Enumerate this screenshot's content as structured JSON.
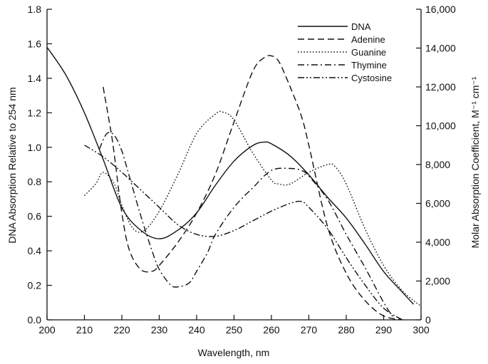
{
  "chart_data": {
    "type": "line",
    "xlabel": "Wavelength, nm",
    "ylabel_left": "DNA Absorption Relative to 254 nm",
    "ylabel_right": "Molar Absorption Coefficient, M⁻¹ cm⁻¹",
    "xlim": [
      200,
      300
    ],
    "ylim_left": [
      0,
      1.8
    ],
    "ylim_right": [
      0,
      16000
    ],
    "x_ticks": [
      "200",
      "210",
      "220",
      "230",
      "240",
      "250",
      "260",
      "270",
      "280",
      "290",
      "300"
    ],
    "y_left_ticks": [
      "0.0",
      "0.2",
      "0.4",
      "0.6",
      "0.8",
      "1.0",
      "1.2",
      "1.4",
      "1.6",
      "1.8"
    ],
    "y_right_ticks": [
      "0",
      "2,000",
      "4,000",
      "6,000",
      "8,000",
      "10,000",
      "12,000",
      "14,000",
      "16,000"
    ],
    "grid": false,
    "legend_position": "top-right",
    "series": [
      {
        "name": "DNA",
        "axis": "left",
        "style": "solid",
        "x": [
          200,
          205,
          210,
          215,
          220,
          225,
          230,
          235,
          240,
          245,
          250,
          255,
          258,
          260,
          265,
          270,
          275,
          280,
          285,
          290,
          295,
          298
        ],
        "y": [
          1.58,
          1.42,
          1.2,
          0.93,
          0.65,
          0.52,
          0.47,
          0.52,
          0.62,
          0.78,
          0.92,
          1.01,
          1.03,
          1.02,
          0.95,
          0.84,
          0.71,
          0.59,
          0.44,
          0.28,
          0.16,
          0.09
        ]
      },
      {
        "name": "Adenine",
        "axis": "right",
        "style": "dashed",
        "x": [
          215,
          217,
          218,
          220,
          222,
          225,
          228,
          230,
          235,
          240,
          245,
          250,
          255,
          258,
          260,
          262,
          265,
          268,
          270,
          275,
          280,
          285,
          290,
          295
        ],
        "y": [
          12000,
          9800,
          8500,
          5500,
          3600,
          2600,
          2500,
          2800,
          4000,
          5500,
          7500,
          10200,
          12800,
          13500,
          13600,
          13300,
          12000,
          10500,
          9000,
          4800,
          2400,
          1000,
          200,
          0
        ]
      },
      {
        "name": "Guanine",
        "axis": "right",
        "style": "dotted",
        "x": [
          210,
          213,
          215,
          218,
          220,
          223,
          226,
          230,
          235,
          240,
          245,
          247,
          250,
          255,
          260,
          262,
          265,
          270,
          275,
          277,
          280,
          285,
          290,
          295,
          300
        ],
        "y": [
          6400,
          7000,
          7600,
          7000,
          5900,
          4700,
          4600,
          5600,
          7500,
          9600,
          10600,
          10700,
          10300,
          8600,
          7200,
          7000,
          7000,
          7600,
          8000,
          7900,
          7000,
          4700,
          2800,
          1500,
          700
        ]
      },
      {
        "name": "Thymine",
        "axis": "right",
        "style": "dashdot",
        "x": [
          214,
          216,
          218,
          220,
          222,
          225,
          228,
          230,
          233,
          235,
          238,
          240,
          243,
          245,
          250,
          255,
          260,
          265,
          268,
          270,
          275,
          280,
          285,
          290,
          293
        ],
        "y": [
          8800,
          9600,
          9500,
          8700,
          7400,
          5400,
          3600,
          2600,
          1800,
          1700,
          1900,
          2500,
          3500,
          4400,
          5800,
          6800,
          7700,
          7800,
          7700,
          7400,
          6200,
          4400,
          2700,
          900,
          0
        ]
      },
      {
        "name": "Cystosine",
        "axis": "right",
        "style": "dashdotdot",
        "x": [
          210,
          215,
          220,
          225,
          230,
          235,
          240,
          245,
          250,
          255,
          260,
          265,
          268,
          270,
          275,
          280,
          285,
          290,
          295
        ],
        "y": [
          9000,
          8400,
          7600,
          6700,
          5800,
          4900,
          4400,
          4300,
          4600,
          5100,
          5600,
          6000,
          6100,
          5800,
          4700,
          3200,
          1800,
          600,
          0
        ]
      }
    ]
  }
}
